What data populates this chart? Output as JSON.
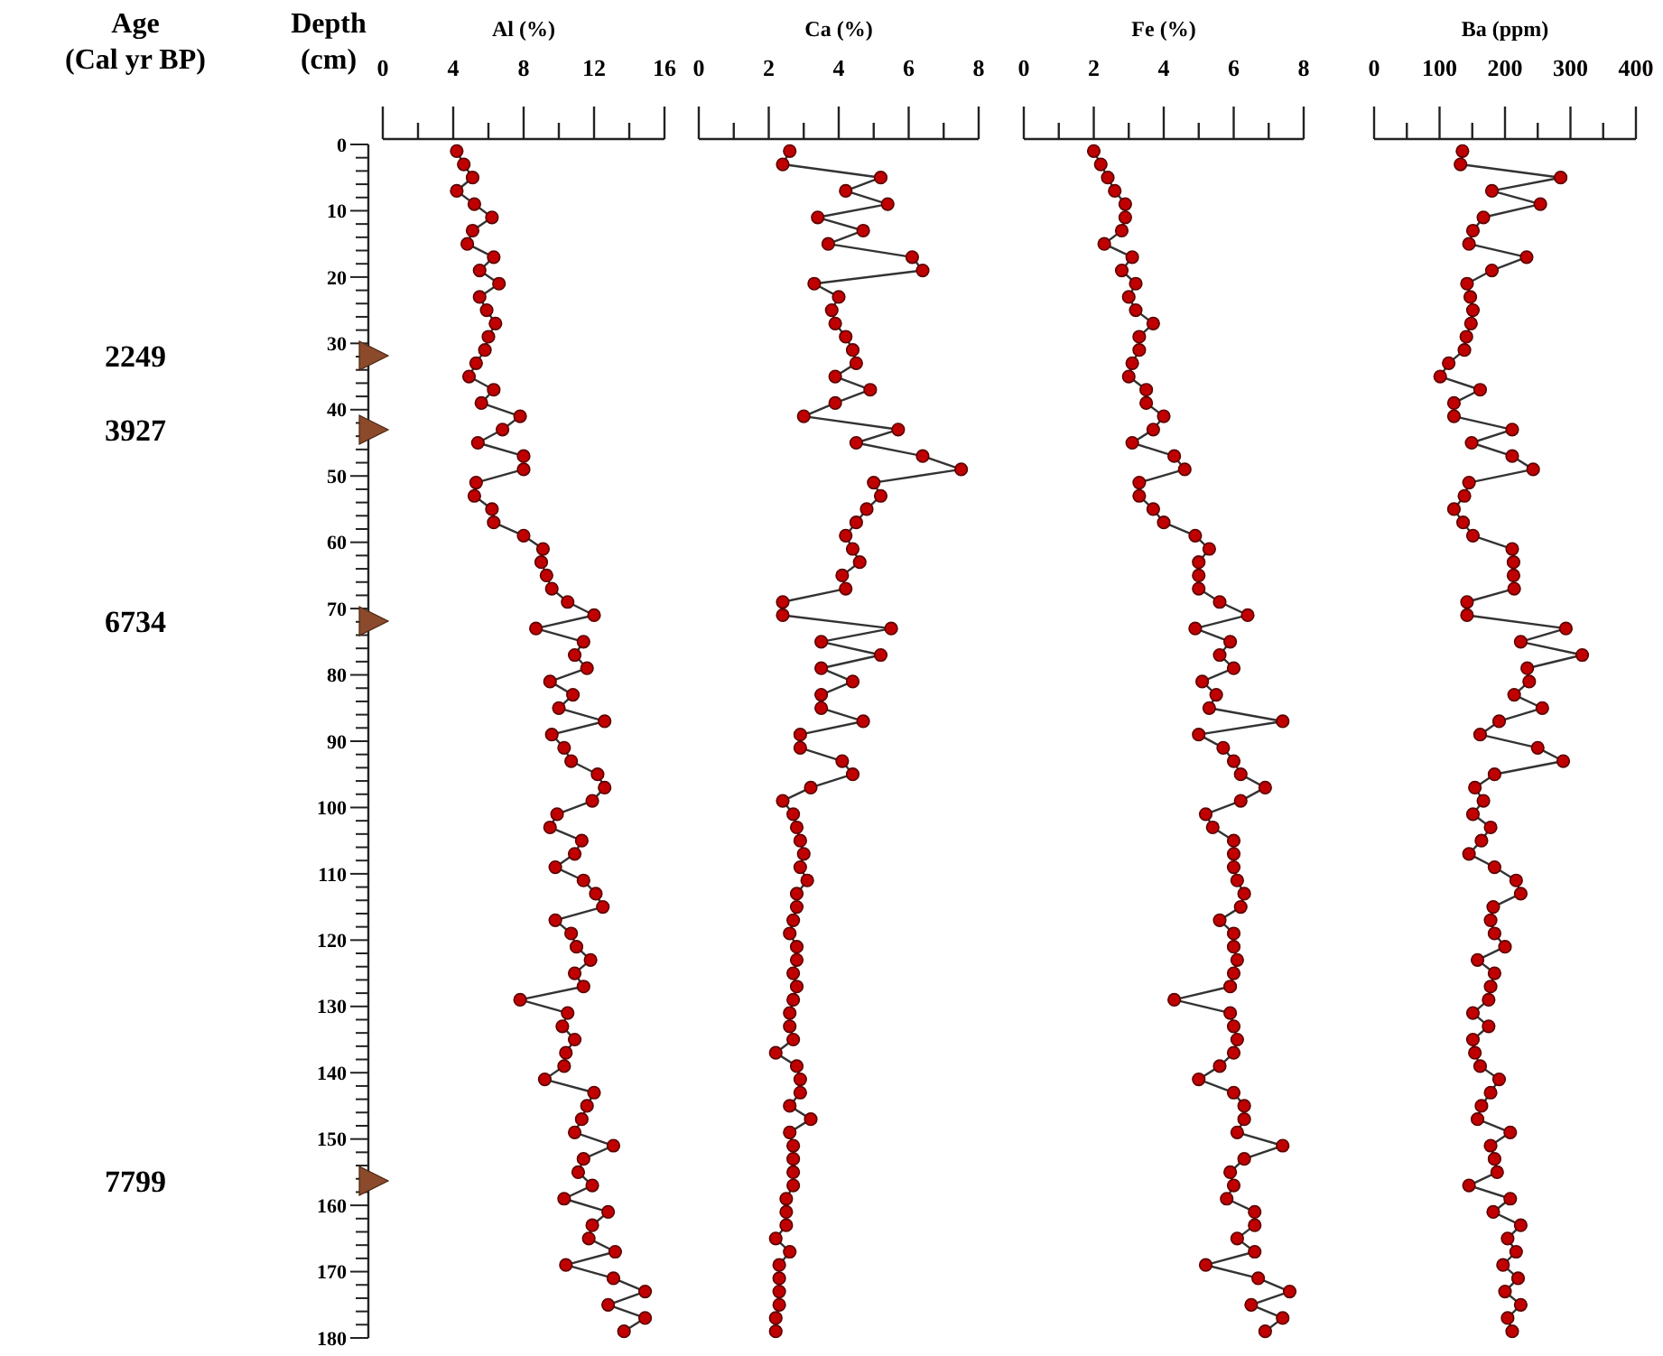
{
  "chart_data": [
    {
      "type": "line",
      "xlabel": "Al (%)",
      "ylabel": "Depth (cm)",
      "marker": "circle",
      "xlim": [
        0,
        16
      ],
      "xticks": [
        0,
        {
          "value": 2,
          "label": null
        },
        4,
        {
          "value": 6,
          "label": null
        },
        8,
        {
          "value": 10,
          "label": null
        },
        12,
        {
          "value": 14,
          "label": null
        },
        16
      ],
      "ylim": [
        180,
        0
      ],
      "yticks": [
        0,
        {
          "value": 2,
          "label": null
        },
        {
          "value": 4,
          "label": null
        },
        {
          "value": 6,
          "label": null
        },
        {
          "value": 8,
          "label": null
        },
        10,
        {
          "value": 12,
          "label": null
        },
        {
          "value": 14,
          "label": null
        },
        {
          "value": 16,
          "label": null
        },
        {
          "value": 18,
          "label": null
        },
        20,
        {
          "value": 22,
          "label": null
        },
        {
          "value": 24,
          "label": null
        },
        {
          "value": 26,
          "label": null
        },
        {
          "value": 28,
          "label": null
        },
        30,
        {
          "value": 32,
          "label": null
        },
        {
          "value": 34,
          "label": null
        },
        {
          "value": 36,
          "label": null
        },
        {
          "value": 38,
          "label": null
        },
        40,
        {
          "value": 42,
          "label": null
        },
        {
          "value": 44,
          "label": null
        },
        {
          "value": 46,
          "label": null
        },
        {
          "value": 48,
          "label": null
        },
        50,
        {
          "value": 52,
          "label": null
        },
        {
          "value": 54,
          "label": null
        },
        {
          "value": 56,
          "label": null
        },
        {
          "value": 58,
          "label": null
        },
        60,
        {
          "value": 62,
          "label": null
        },
        {
          "value": 64,
          "label": null
        },
        {
          "value": 66,
          "label": null
        },
        {
          "value": 68,
          "label": null
        },
        70,
        {
          "value": 72,
          "label": null
        },
        {
          "value": 74,
          "label": null
        },
        {
          "value": 76,
          "label": null
        },
        {
          "value": 78,
          "label": null
        },
        80,
        {
          "value": 82,
          "label": null
        },
        {
          "value": 84,
          "label": null
        },
        {
          "value": 86,
          "label": null
        },
        {
          "value": 88,
          "label": null
        },
        90,
        {
          "value": 92,
          "label": null
        },
        {
          "value": 94,
          "label": null
        },
        {
          "value": 96,
          "label": null
        },
        {
          "value": 98,
          "label": null
        },
        100,
        {
          "value": 102,
          "label": null
        },
        {
          "value": 104,
          "label": null
        },
        {
          "value": 106,
          "label": null
        },
        {
          "value": 108,
          "label": null
        },
        110,
        {
          "value": 112,
          "label": null
        },
        {
          "value": 114,
          "label": null
        },
        {
          "value": 116,
          "label": null
        },
        {
          "value": 118,
          "label": null
        },
        120,
        {
          "value": 122,
          "label": null
        },
        {
          "value": 124,
          "label": null
        },
        {
          "value": 126,
          "label": null
        },
        {
          "value": 128,
          "label": null
        },
        130,
        {
          "value": 132,
          "label": null
        },
        {
          "value": 134,
          "label": null
        },
        {
          "value": 136,
          "label": null
        },
        {
          "value": 138,
          "label": null
        },
        140,
        {
          "value": 142,
          "label": null
        },
        {
          "value": 144,
          "label": null
        },
        {
          "value": 146,
          "label": null
        },
        {
          "value": 148,
          "label": null
        },
        150,
        {
          "value": 152,
          "label": null
        },
        {
          "value": 154,
          "label": null
        },
        {
          "value": 156,
          "label": null
        },
        {
          "value": 158,
          "label": null
        },
        160,
        {
          "value": 162,
          "label": null
        },
        {
          "value": 164,
          "label": null
        },
        {
          "value": 166,
          "label": null
        },
        {
          "value": 168,
          "label": null
        },
        170,
        {
          "value": 172,
          "label": null
        },
        {
          "value": 174,
          "label": null
        },
        {
          "value": 176,
          "label": null
        },
        {
          "value": 178,
          "label": null
        },
        180
      ],
      "annotations": [
        "Age (Cal yr BP)",
        "2249",
        "3927",
        "6734",
        "7799"
      ],
      "series": [
        {
          "color": "#c00000",
          "x": [
            4.2,
            4.6,
            5.1,
            4.2,
            5.2,
            6.2,
            5.1,
            4.8,
            6.3,
            5.5,
            6.6,
            5.5,
            5.9,
            6.4,
            6.0,
            5.8,
            5.3,
            4.9,
            6.3,
            5.6,
            7.8,
            6.8,
            5.4,
            8.0,
            8.0,
            5.3,
            5.2,
            6.2,
            6.3,
            8.0,
            9.1,
            9.0,
            9.3,
            9.6,
            10.5,
            12.0,
            8.7,
            11.4,
            10.9,
            11.6,
            9.5,
            10.8,
            10.0,
            12.6,
            9.6,
            10.3,
            10.7,
            12.2,
            12.6,
            11.9,
            9.9,
            9.5,
            11.3,
            10.9,
            9.8,
            11.4,
            12.1,
            12.5,
            9.8,
            10.7,
            11.0,
            11.8,
            10.9,
            11.4,
            7.8,
            10.5,
            10.2,
            10.9,
            10.4,
            10.3,
            9.2,
            12.0,
            11.6,
            11.3,
            10.9,
            13.1,
            11.4,
            11.1,
            11.9,
            10.3,
            12.8,
            11.9,
            11.7,
            13.2,
            10.4,
            13.1,
            14.9,
            12.8,
            14.9,
            13.7
          ],
          "values": [
            1,
            3,
            5,
            7,
            9,
            11,
            13,
            15,
            17,
            19,
            21,
            23,
            25,
            27,
            29,
            31,
            33,
            35,
            37,
            39,
            41,
            43,
            45,
            47,
            49,
            51,
            53,
            55,
            57,
            59,
            61,
            63,
            65,
            67,
            69,
            71,
            73,
            75,
            77,
            79,
            81,
            83,
            85,
            87,
            89,
            91,
            93,
            95,
            97,
            99,
            101,
            103,
            105,
            107,
            109,
            111,
            113,
            115,
            117,
            119,
            121,
            123,
            125,
            127,
            129,
            131,
            133,
            135,
            137,
            139,
            141,
            143,
            145,
            147,
            149,
            151,
            153,
            155,
            157,
            159,
            161,
            163,
            165,
            167,
            169,
            171,
            173,
            175,
            177,
            179
          ]
        }
      ]
    },
    {
      "type": "line",
      "xlabel": "Ca (%)",
      "marker": "circle",
      "xlim": [
        0,
        8
      ],
      "xticks": [
        0,
        {
          "value": 1,
          "label": null
        },
        2,
        {
          "value": 3,
          "label": null
        },
        4,
        {
          "value": 5,
          "label": null
        },
        6,
        {
          "value": 7,
          "label": null
        },
        8
      ],
      "ylim": [
        180,
        0
      ],
      "tick_labels": "x",
      "series": [
        {
          "color": "#c00000",
          "x": [
            2.6,
            2.4,
            5.2,
            4.2,
            5.4,
            3.4,
            4.7,
            3.7,
            6.1,
            6.4,
            3.3,
            4.0,
            3.8,
            3.9,
            4.2,
            4.4,
            4.5,
            3.9,
            4.9,
            3.9,
            3.0,
            5.7,
            4.5,
            6.4,
            7.5,
            5.0,
            5.2,
            4.8,
            4.5,
            4.2,
            4.4,
            4.6,
            4.1,
            4.2,
            2.4,
            2.4,
            5.5,
            3.5,
            5.2,
            3.5,
            4.4,
            3.5,
            3.5,
            4.7,
            2.9,
            2.9,
            4.1,
            4.4,
            3.2,
            2.4,
            2.7,
            2.8,
            2.9,
            3.0,
            2.9,
            3.1,
            2.8,
            2.8,
            2.7,
            2.6,
            2.8,
            2.8,
            2.7,
            2.8,
            2.7,
            2.6,
            2.6,
            2.7,
            2.2,
            2.8,
            2.9,
            2.9,
            2.6,
            3.2,
            2.6,
            2.7,
            2.7,
            2.7,
            2.7,
            2.5,
            2.5,
            2.5,
            2.2,
            2.6,
            2.3,
            2.3,
            2.3,
            2.3,
            2.2,
            2.2
          ],
          "values": [
            1,
            3,
            5,
            7,
            9,
            11,
            13,
            15,
            17,
            19,
            21,
            23,
            25,
            27,
            29,
            31,
            33,
            35,
            37,
            39,
            41,
            43,
            45,
            47,
            49,
            51,
            53,
            55,
            57,
            59,
            61,
            63,
            65,
            67,
            69,
            71,
            73,
            75,
            77,
            79,
            81,
            83,
            85,
            87,
            89,
            91,
            93,
            95,
            97,
            99,
            101,
            103,
            105,
            107,
            109,
            111,
            113,
            115,
            117,
            119,
            121,
            123,
            125,
            127,
            129,
            131,
            133,
            135,
            137,
            139,
            141,
            143,
            145,
            147,
            149,
            151,
            153,
            155,
            157,
            159,
            161,
            163,
            165,
            167,
            169,
            171,
            173,
            175,
            177,
            179
          ]
        }
      ]
    },
    {
      "type": "line",
      "xlabel": "Fe (%)",
      "marker": "circle",
      "xlim": [
        0,
        8
      ],
      "xticks": [
        0,
        {
          "value": 1,
          "label": null
        },
        2,
        {
          "value": 3,
          "label": null
        },
        4,
        {
          "value": 5,
          "label": null
        },
        6,
        {
          "value": 7,
          "label": null
        },
        8
      ],
      "ylim": [
        180,
        0
      ],
      "tick_labels": "x",
      "series": [
        {
          "color": "#c00000",
          "x": [
            2.0,
            2.2,
            2.4,
            2.6,
            2.9,
            2.9,
            2.8,
            2.3,
            3.1,
            2.8,
            3.2,
            3.0,
            3.2,
            3.7,
            3.3,
            3.3,
            3.1,
            3.0,
            3.5,
            3.5,
            4.0,
            3.7,
            3.1,
            4.3,
            4.6,
            3.3,
            3.3,
            3.7,
            4.0,
            4.9,
            5.3,
            5.0,
            5.0,
            5.0,
            5.6,
            6.4,
            4.9,
            5.9,
            5.6,
            6.0,
            5.1,
            5.5,
            5.3,
            7.4,
            5.0,
            5.7,
            6.0,
            6.2,
            6.9,
            6.2,
            5.2,
            5.4,
            6.0,
            6.0,
            6.0,
            6.1,
            6.3,
            6.2,
            5.6,
            6.0,
            6.0,
            6.1,
            6.0,
            5.9,
            4.3,
            5.9,
            6.0,
            6.1,
            6.0,
            5.6,
            5.0,
            6.0,
            6.3,
            6.3,
            6.1,
            7.4,
            6.3,
            5.9,
            6.0,
            5.8,
            6.6,
            6.6,
            6.1,
            6.6,
            5.2,
            6.7,
            7.6,
            6.5,
            7.4,
            6.9
          ],
          "values": [
            1,
            3,
            5,
            7,
            9,
            11,
            13,
            15,
            17,
            19,
            21,
            23,
            25,
            27,
            29,
            31,
            33,
            35,
            37,
            39,
            41,
            43,
            45,
            47,
            49,
            51,
            53,
            55,
            57,
            59,
            61,
            63,
            65,
            67,
            69,
            71,
            73,
            75,
            77,
            79,
            81,
            83,
            85,
            87,
            89,
            91,
            93,
            95,
            97,
            99,
            101,
            103,
            105,
            107,
            109,
            111,
            113,
            115,
            117,
            119,
            121,
            123,
            125,
            127,
            129,
            131,
            133,
            135,
            137,
            139,
            141,
            143,
            145,
            147,
            149,
            151,
            153,
            155,
            157,
            159,
            161,
            163,
            165,
            167,
            169,
            171,
            173,
            175,
            177,
            179
          ]
        }
      ]
    },
    {
      "type": "line",
      "xlabel": "Ba (ppm)",
      "marker": "circle",
      "xlim": [
        0,
        400
      ],
      "xticks": [
        0,
        {
          "value": 50,
          "label": null
        },
        100,
        {
          "value": 150,
          "label": null
        },
        200,
        {
          "value": 250,
          "label": null
        },
        300,
        {
          "value": 350,
          "label": null
        },
        400
      ],
      "ylim": [
        180,
        0
      ],
      "tick_labels": "x",
      "series": [
        {
          "color": "#c00000",
          "x": [
            135,
            132,
            285,
            180,
            254,
            167,
            151,
            145,
            233,
            180,
            142,
            147,
            151,
            148,
            141,
            138,
            114,
            101,
            162,
            122,
            122,
            211,
            149,
            211,
            243,
            145,
            138,
            122,
            136,
            151,
            211,
            213,
            213,
            214,
            142,
            142,
            293,
            224,
            318,
            234,
            237,
            214,
            257,
            191,
            162,
            250,
            289,
            184,
            154,
            167,
            151,
            178,
            164,
            145,
            184,
            217,
            224,
            182,
            178,
            184,
            200,
            158,
            184,
            178,
            175,
            151,
            175,
            151,
            154,
            162,
            191,
            178,
            164,
            158,
            208,
            178,
            184,
            188,
            145,
            208,
            182,
            224,
            204,
            217,
            197,
            220,
            200,
            224,
            204,
            211
          ],
          "values": [
            1,
            3,
            5,
            7,
            9,
            11,
            13,
            15,
            17,
            19,
            21,
            23,
            25,
            27,
            29,
            31,
            33,
            35,
            37,
            39,
            41,
            43,
            45,
            47,
            49,
            51,
            53,
            55,
            57,
            59,
            61,
            63,
            65,
            67,
            69,
            71,
            73,
            75,
            77,
            79,
            81,
            83,
            85,
            87,
            89,
            91,
            93,
            95,
            97,
            99,
            101,
            103,
            105,
            107,
            109,
            111,
            113,
            115,
            117,
            119,
            121,
            123,
            125,
            127,
            129,
            131,
            133,
            135,
            137,
            139,
            141,
            143,
            145,
            147,
            149,
            151,
            153,
            155,
            157,
            159,
            161,
            163,
            165,
            167,
            169,
            171,
            173,
            175,
            177,
            179
          ]
        }
      ]
    }
  ]
}
